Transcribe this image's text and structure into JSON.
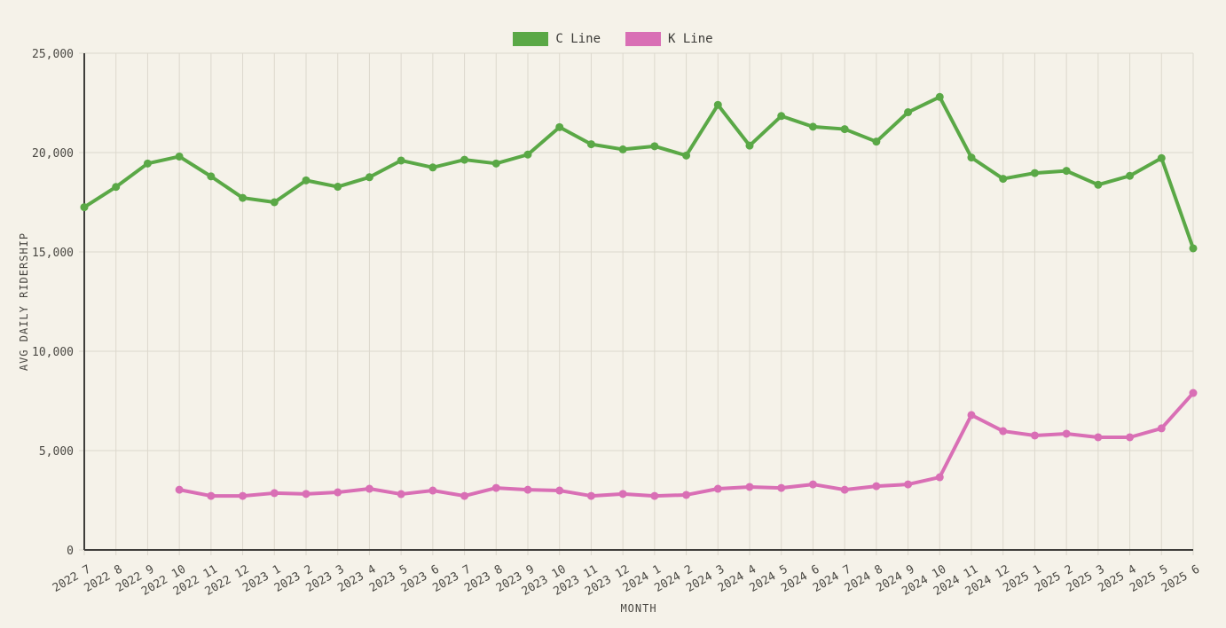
{
  "chart_data": {
    "type": "line",
    "title": "",
    "xlabel": "MONTH",
    "ylabel": "AVG DAILY RIDERSHIP",
    "ylim": [
      0,
      25000
    ],
    "yticks": [
      0,
      5000,
      10000,
      15000,
      20000,
      25000
    ],
    "ytick_labels": [
      "0",
      "5,000",
      "10,000",
      "15,000",
      "20,000",
      "25,000"
    ],
    "grid": true,
    "legend_position": "top-center",
    "categories": [
      "2022 7",
      "2022 8",
      "2022 9",
      "2022 10",
      "2022 11",
      "2022 12",
      "2023 1",
      "2023 2",
      "2023 3",
      "2023 4",
      "2023 5",
      "2023 6",
      "2023 7",
      "2023 8",
      "2023 9",
      "2023 10",
      "2023 11",
      "2023 12",
      "2024 1",
      "2024 2",
      "2024 3",
      "2024 4",
      "2024 5",
      "2024 6",
      "2024 7",
      "2024 8",
      "2024 9",
      "2024 10",
      "2024 11",
      "2024 12",
      "2025 1",
      "2025 2",
      "2025 3",
      "2025 4",
      "2025 5",
      "2025 6"
    ],
    "series": [
      {
        "name": "C Line",
        "color": "#5aa846",
        "values": [
          17250,
          18270,
          19450,
          19800,
          18800,
          17720,
          17500,
          18600,
          18280,
          18760,
          19600,
          19250,
          19640,
          19450,
          19900,
          21280,
          20420,
          20160,
          20320,
          19850,
          22400,
          20350,
          21840,
          21300,
          21180,
          20550,
          22030,
          22800,
          19750,
          18680,
          18970,
          19080,
          18380,
          18830,
          19720,
          15180
        ]
      },
      {
        "name": "K Line",
        "color": "#d96fb5",
        "values": [
          null,
          null,
          null,
          3030,
          2720,
          2720,
          2860,
          2820,
          2900,
          3080,
          2810,
          2990,
          2720,
          3120,
          3030,
          2990,
          2720,
          2820,
          2720,
          2770,
          3080,
          3170,
          3120,
          3300,
          3030,
          3210,
          3300,
          3660,
          6790,
          5980,
          5760,
          5850,
          5670,
          5670,
          6120,
          7900
        ]
      }
    ]
  },
  "colors": {
    "background": "#f5f2e9",
    "grid": "#dcd8cd",
    "axis": "#3f3e3b",
    "text": "#4a4843"
  }
}
